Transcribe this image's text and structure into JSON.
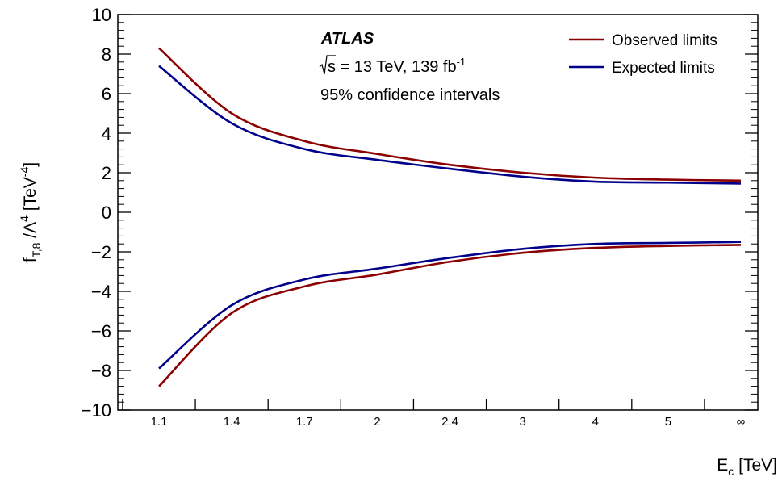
{
  "chart_data": {
    "type": "line",
    "experiment": "ATLAS",
    "energy_label": "s = 13 TeV, 139 fb",
    "energy_lumi_exponent": "-1",
    "interval_label": "95% confidence intervals",
    "ylabel": {
      "base": "f",
      "sub": "T,8",
      "mid": "/Λ",
      "sup": "4",
      "unit": "[TeV",
      "unit_sup": "-4",
      "close": "]"
    },
    "xlabel": {
      "base": "E",
      "sub": "c",
      "unit": "[TeV]"
    },
    "categories": [
      "1.1",
      "1.4",
      "1.7",
      "2",
      "2.4",
      "3",
      "4",
      "5",
      "∞"
    ],
    "ylim": [
      -10,
      10
    ],
    "y_ticks": [
      -10,
      -8,
      -6,
      -4,
      -2,
      0,
      2,
      4,
      6,
      8,
      10
    ],
    "y_tick_labels": [
      "−10",
      "−8",
      "−6",
      "−4",
      "−2",
      "0",
      "2",
      "4",
      "6",
      "8",
      "10"
    ],
    "legend_position": "top-right",
    "series": [
      {
        "name": "Observed limits",
        "color": "#8b0000",
        "bound": "upper",
        "values": [
          8.3,
          5.0,
          3.6,
          2.95,
          2.4,
          2.0,
          1.75,
          1.65,
          1.6
        ]
      },
      {
        "name": "Observed limits",
        "color": "#8b0000",
        "bound": "lower",
        "values": [
          -8.8,
          -5.1,
          -3.75,
          -3.15,
          -2.5,
          -2.05,
          -1.8,
          -1.7,
          -1.65
        ]
      },
      {
        "name": "Expected limits",
        "color": "#00008b",
        "bound": "upper",
        "values": [
          7.4,
          4.5,
          3.2,
          2.65,
          2.2,
          1.8,
          1.55,
          1.5,
          1.45
        ]
      },
      {
        "name": "Expected limits",
        "color": "#00008b",
        "bound": "lower",
        "values": [
          -7.9,
          -4.7,
          -3.4,
          -2.85,
          -2.3,
          -1.85,
          -1.6,
          -1.55,
          -1.5
        ]
      }
    ],
    "legend": [
      {
        "label": "Observed limits",
        "color": "#8b0000"
      },
      {
        "label": "Expected limits",
        "color": "#00008b"
      }
    ]
  }
}
